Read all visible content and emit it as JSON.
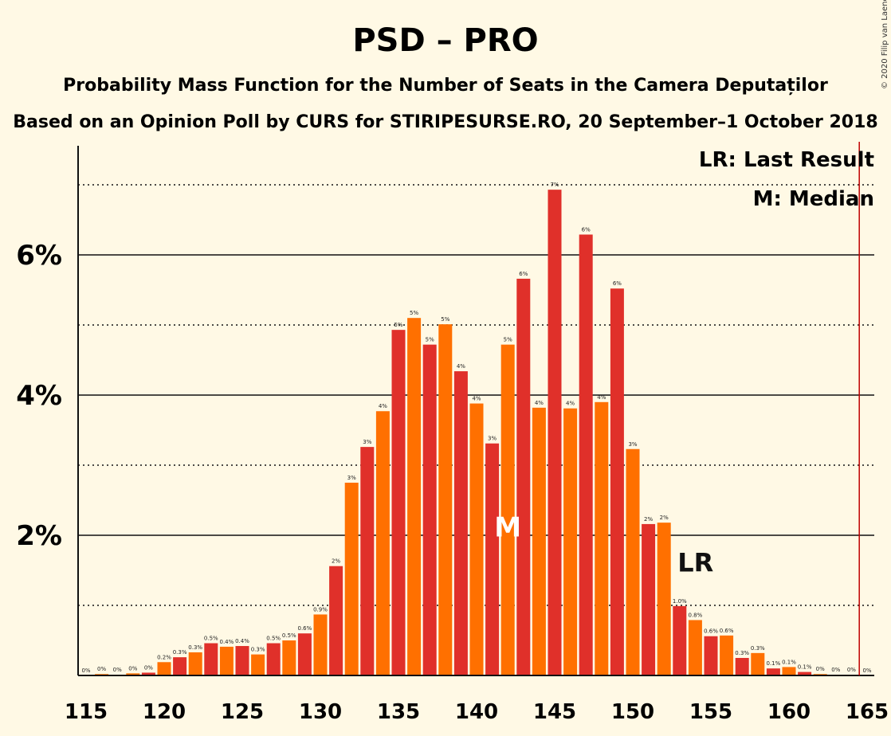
{
  "chart_data": {
    "type": "bar",
    "title": "PSD – PRO",
    "subtitle": "Probability Mass Function for the Number of Seats in the Camera Deputaților",
    "subtitle2": "Based on an Opinion Poll by CURS for STIRIPESURSE.RO, 20 September–1 October 2018",
    "copyright": "© 2020 Filip van Laenen",
    "legend": [
      "LR: Last Result",
      "M: Median"
    ],
    "legend_position": "top-right",
    "y_ticks": [
      "2%",
      "4%",
      "6%"
    ],
    "y_tick_values": [
      2,
      4,
      6
    ],
    "y_dotted_values": [
      1,
      3,
      5,
      7
    ],
    "ylim": [
      0,
      7.5
    ],
    "x_ticks": [
      "115",
      "120",
      "125",
      "130",
      "135",
      "140",
      "145",
      "150",
      "155",
      "160",
      "165"
    ],
    "x_tick_values": [
      115,
      120,
      125,
      130,
      135,
      140,
      145,
      150,
      155,
      160,
      165
    ],
    "xlim": [
      115,
      165
    ],
    "median_seat": 142,
    "median_marker": "M",
    "last_result_seat": 153,
    "last_result_marker": "LR",
    "majority_line_seat": 164.5,
    "colors": {
      "odd": "#e0302a",
      "even": "#ff7000",
      "majority": "#c00000",
      "background": "#fff9e5"
    },
    "bars": [
      {
        "seat": 116,
        "value": 0.02,
        "label": "0%"
      },
      {
        "seat": 117,
        "value": 0.01,
        "label": "0%"
      },
      {
        "seat": 118,
        "value": 0.03,
        "label": "0%"
      },
      {
        "seat": 119,
        "value": 0.04,
        "label": "0%"
      },
      {
        "seat": 120,
        "value": 0.19,
        "label": "0.2%"
      },
      {
        "seat": 121,
        "value": 0.26,
        "label": "0.3%"
      },
      {
        "seat": 122,
        "value": 0.33,
        "label": "0.3%"
      },
      {
        "seat": 123,
        "value": 0.46,
        "label": "0.5%"
      },
      {
        "seat": 124,
        "value": 0.41,
        "label": "0.4%"
      },
      {
        "seat": 125,
        "value": 0.42,
        "label": "0.4%"
      },
      {
        "seat": 126,
        "value": 0.3,
        "label": "0.3%"
      },
      {
        "seat": 127,
        "value": 0.46,
        "label": "0.5%"
      },
      {
        "seat": 128,
        "value": 0.5,
        "label": "0.5%"
      },
      {
        "seat": 129,
        "value": 0.6,
        "label": "0.6%"
      },
      {
        "seat": 130,
        "value": 0.87,
        "label": "0.9%"
      },
      {
        "seat": 131,
        "value": 1.56,
        "label": "2%"
      },
      {
        "seat": 132,
        "value": 2.75,
        "label": "3%"
      },
      {
        "seat": 133,
        "value": 3.26,
        "label": "3%"
      },
      {
        "seat": 134,
        "value": 3.77,
        "label": "4%"
      },
      {
        "seat": 135,
        "value": 4.93,
        "label": "5%"
      },
      {
        "seat": 136,
        "value": 5.1,
        "label": "5%"
      },
      {
        "seat": 137,
        "value": 4.72,
        "label": "5%"
      },
      {
        "seat": 138,
        "value": 5.01,
        "label": "5%"
      },
      {
        "seat": 139,
        "value": 4.34,
        "label": "4%"
      },
      {
        "seat": 140,
        "value": 3.88,
        "label": "4%"
      },
      {
        "seat": 141,
        "value": 3.31,
        "label": "3%"
      },
      {
        "seat": 142,
        "value": 4.72,
        "label": "5%"
      },
      {
        "seat": 143,
        "value": 5.66,
        "label": "6%"
      },
      {
        "seat": 144,
        "value": 3.82,
        "label": "4%"
      },
      {
        "seat": 145,
        "value": 6.93,
        "label": "7%"
      },
      {
        "seat": 146,
        "value": 3.81,
        "label": "4%"
      },
      {
        "seat": 147,
        "value": 6.29,
        "label": "6%"
      },
      {
        "seat": 148,
        "value": 3.9,
        "label": "4%"
      },
      {
        "seat": 149,
        "value": 5.52,
        "label": "6%"
      },
      {
        "seat": 150,
        "value": 3.23,
        "label": "3%"
      },
      {
        "seat": 151,
        "value": 2.16,
        "label": "2%"
      },
      {
        "seat": 152,
        "value": 2.18,
        "label": "2%"
      },
      {
        "seat": 153,
        "value": 0.99,
        "label": "1.0%"
      },
      {
        "seat": 154,
        "value": 0.79,
        "label": "0.8%"
      },
      {
        "seat": 155,
        "value": 0.56,
        "label": "0.6%"
      },
      {
        "seat": 156,
        "value": 0.57,
        "label": "0.6%"
      },
      {
        "seat": 157,
        "value": 0.25,
        "label": "0.3%"
      },
      {
        "seat": 158,
        "value": 0.32,
        "label": "0.3%"
      },
      {
        "seat": 159,
        "value": 0.1,
        "label": "0.1%"
      },
      {
        "seat": 160,
        "value": 0.12,
        "label": "0.1%"
      },
      {
        "seat": 161,
        "value": 0.05,
        "label": "0.1%"
      },
      {
        "seat": 162,
        "value": 0.02,
        "label": "0%"
      },
      {
        "seat": 163,
        "value": 0.01,
        "label": "0%"
      },
      {
        "seat": 164,
        "value": 0.01,
        "label": "0%"
      },
      {
        "seat": 165,
        "value": 0.0,
        "label": "0%"
      }
    ],
    "extra_zero_labels": [
      {
        "seat": 115,
        "label": "0%"
      }
    ]
  }
}
